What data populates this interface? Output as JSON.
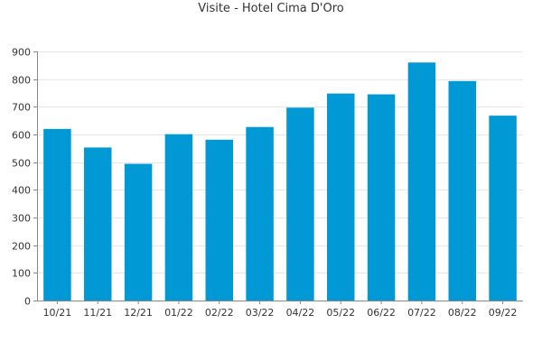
{
  "chart_data": {
    "type": "bar",
    "title": "Visite - Hotel Cima D'Oro",
    "xlabel": "",
    "ylabel": "",
    "categories": [
      "10/21",
      "11/21",
      "12/21",
      "01/22",
      "02/22",
      "03/22",
      "04/22",
      "05/22",
      "06/22",
      "07/22",
      "08/22",
      "09/22"
    ],
    "values": [
      620,
      553,
      494,
      601,
      581,
      627,
      697,
      748,
      745,
      860,
      793,
      668
    ],
    "ylim": [
      0,
      900
    ],
    "yticks": [
      0,
      100,
      200,
      300,
      400,
      500,
      600,
      700,
      800,
      900
    ],
    "grid": true,
    "bar_color": "#0099d6",
    "grid_color": "#e6e6e6",
    "axis_color": "#888888"
  }
}
